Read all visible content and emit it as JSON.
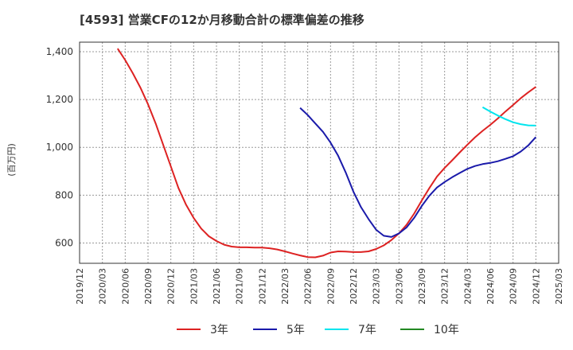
{
  "chart_data": {
    "type": "line",
    "title": "[4593]  営業CFの12か月移動合計の標準偏差の推移",
    "ylabel": "(百万円)",
    "xlabel": "",
    "ylim": [
      515,
      1440
    ],
    "yticks": [
      600,
      800,
      1000,
      1200,
      1400
    ],
    "ytick_labels": [
      "600",
      "800",
      "1,000",
      "1,200",
      "1,400"
    ],
    "x_ticks": [
      "2019/12",
      "2020/03",
      "2020/06",
      "2020/09",
      "2020/12",
      "2021/03",
      "2021/06",
      "2021/09",
      "2021/12",
      "2022/03",
      "2022/06",
      "2022/09",
      "2022/12",
      "2023/03",
      "2023/06",
      "2023/09",
      "2023/12",
      "2024/03",
      "2024/06",
      "2024/09",
      "2024/12",
      "2025/03"
    ],
    "grid": true,
    "legend_position": "bottom",
    "series": [
      {
        "name": "3年",
        "color": "#dd2222",
        "x": [
          "2020/05",
          "2020/06",
          "2020/07",
          "2020/08",
          "2020/09",
          "2020/10",
          "2020/11",
          "2020/12",
          "2021/01",
          "2021/02",
          "2021/03",
          "2021/04",
          "2021/05",
          "2021/06",
          "2021/07",
          "2021/08",
          "2021/09",
          "2021/10",
          "2021/11",
          "2021/12",
          "2022/01",
          "2022/02",
          "2022/03",
          "2022/04",
          "2022/05",
          "2022/06",
          "2022/07",
          "2022/08",
          "2022/09",
          "2022/10",
          "2022/11",
          "2022/12",
          "2023/01",
          "2023/02",
          "2023/03",
          "2023/04",
          "2023/05",
          "2023/06",
          "2023/07",
          "2023/08",
          "2023/09",
          "2023/10",
          "2023/11",
          "2023/12",
          "2024/01",
          "2024/02",
          "2024/03",
          "2024/04",
          "2024/05",
          "2024/06",
          "2024/07",
          "2024/08",
          "2024/09",
          "2024/10",
          "2024/11",
          "2024/12"
        ],
        "values": [
          1413,
          1365,
          1310,
          1250,
          1180,
          1100,
          1010,
          920,
          830,
          760,
          705,
          660,
          628,
          608,
          593,
          585,
          582,
          582,
          581,
          581,
          578,
          573,
          565,
          556,
          548,
          541,
          540,
          547,
          560,
          565,
          564,
          562,
          562,
          565,
          575,
          590,
          612,
          640,
          676,
          723,
          778,
          830,
          878,
          914,
          946,
          979,
          1011,
          1042,
          1069,
          1094,
          1121,
          1150,
          1177,
          1205,
          1230,
          1253
        ]
      },
      {
        "name": "5年",
        "color": "#1a1aaa",
        "x": [
          "2022/05",
          "2022/06",
          "2022/07",
          "2022/08",
          "2022/09",
          "2022/10",
          "2022/11",
          "2022/12",
          "2023/01",
          "2023/02",
          "2023/03",
          "2023/04",
          "2023/05",
          "2023/06",
          "2023/07",
          "2023/08",
          "2023/09",
          "2023/10",
          "2023/11",
          "2023/12",
          "2024/01",
          "2024/02",
          "2024/03",
          "2024/04",
          "2024/05",
          "2024/06",
          "2024/07",
          "2024/08",
          "2024/09",
          "2024/10",
          "2024/11",
          "2024/12"
        ],
        "values": [
          1165,
          1135,
          1100,
          1065,
          1020,
          965,
          895,
          815,
          750,
          700,
          655,
          630,
          625,
          640,
          665,
          705,
          755,
          798,
          832,
          855,
          875,
          893,
          910,
          922,
          930,
          935,
          942,
          952,
          963,
          982,
          1008,
          1043
        ]
      },
      {
        "name": "7年",
        "color": "#00e5ee",
        "x": [
          "2024/05",
          "2024/06",
          "2024/07",
          "2024/08",
          "2024/09",
          "2024/10",
          "2024/11",
          "2024/12"
        ],
        "values": [
          1168,
          1150,
          1133,
          1118,
          1105,
          1097,
          1092,
          1091
        ]
      },
      {
        "name": "10年",
        "color": "#228822",
        "x": [],
        "values": []
      }
    ]
  }
}
